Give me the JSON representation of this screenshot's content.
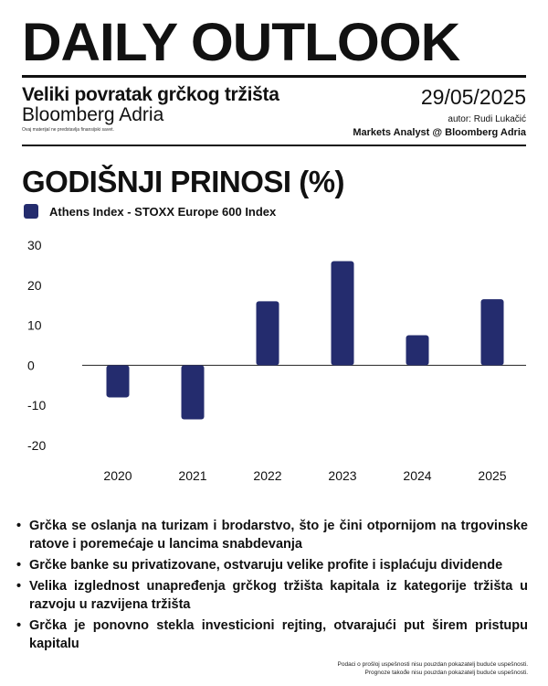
{
  "header": {
    "masthead": "DAILY OUTLOOK",
    "subtitle": "Veliki povratak grčkog tržišta",
    "brand": "Bloomberg Adria",
    "small_disclaimer": "Ovaj materijal ne predstavlja finansijski savet.",
    "date": "29/05/2025",
    "author": "autor: Rudi Lukačić",
    "analyst": "Markets Analyst @ Bloomberg Adria"
  },
  "chart_data": {
    "type": "bar",
    "title": "GODIŠNJI PRINOSI (%)",
    "categories": [
      "2020",
      "2021",
      "2022",
      "2023",
      "2024",
      "2025"
    ],
    "series": [
      {
        "name": "Athens Index - STOXX Europe 600 Index",
        "values": [
          -8,
          -13.5,
          16,
          26,
          7.5,
          16.5
        ]
      }
    ],
    "yticks": [
      30,
      20,
      10,
      0,
      -10,
      -20
    ],
    "ylim": [
      -20,
      30
    ],
    "grid": false,
    "legend_position": "top-left",
    "bar_color": "#242c6e"
  },
  "bullets": [
    "Grčka se oslanja na turizam i brodarstvo, što je čini otpornijom na trgovinske ratove i poremećaje u lancima snabdevanja",
    "Grčke banke su privatizovane, ostvaruju velike profite i isplaćuju dividende",
    "Velika izglednost unapređenja grčkog tržišta kapitala iz kategorije tržišta u razvoju u razvijena tržišta",
    "Grčka je ponovno stekla investicioni rejting, otvarajući put širem pristupu kapitalu"
  ],
  "footer": {
    "line1": "Podaci o prošloj uspešnosti nisu pouzdan pokazatelj buduće uspešnosti.",
    "line2": "Prognoze takođe nisu pouzdan pokazatelj buduće uspešnosti."
  }
}
